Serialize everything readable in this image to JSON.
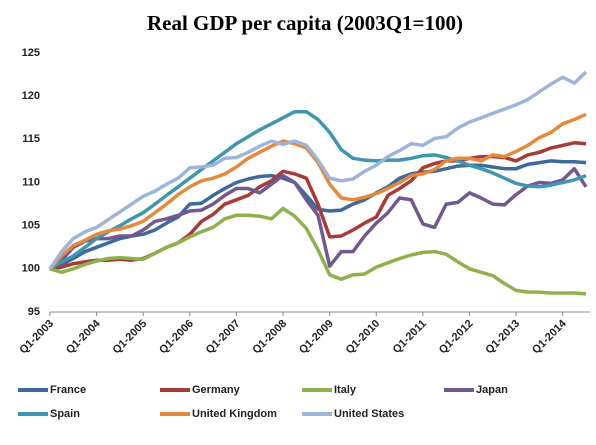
{
  "chart_data": {
    "type": "line",
    "title": "Real GDP per capita (2003Q1=100)",
    "categories": [
      "Q1-2003",
      null,
      null,
      null,
      "Q1-2004",
      null,
      null,
      null,
      "Q1-2005",
      null,
      null,
      null,
      "Q1-2006",
      null,
      null,
      null,
      "Q1-2007",
      null,
      null,
      null,
      "Q1-2008",
      null,
      null,
      null,
      "Q1-2009",
      null,
      null,
      null,
      "Q1-2010",
      null,
      null,
      null,
      "Q1-2011",
      null,
      null,
      null,
      "Q1-2012",
      null,
      null,
      null,
      "Q1-2013",
      null,
      null,
      null,
      "Q1-2014",
      null,
      null
    ],
    "ylim": [
      95,
      125
    ],
    "yticks": [
      95,
      100,
      105,
      110,
      115,
      120,
      125
    ],
    "grid": false,
    "series": [
      {
        "name": "France",
        "color": "#3b6a9b",
        "values": [
          100,
          100.5,
          101.2,
          102,
          102.5,
          103,
          103.5,
          103.8,
          104,
          104.5,
          105.3,
          106,
          107.5,
          107.6,
          108.5,
          109.3,
          110,
          110.4,
          110.7,
          110.8,
          110.5,
          110,
          108.5,
          106.9,
          106.7,
          106.8,
          107.5,
          108,
          108.8,
          109.5,
          110.5,
          111,
          111.2,
          111.3,
          111.6,
          111.9,
          112,
          112,
          111.8,
          111.6,
          111.6,
          112.1,
          112.3,
          112.5,
          112.4,
          112.4,
          112.3
        ]
      },
      {
        "name": "Germany",
        "color": "#a83b37",
        "values": [
          100,
          100.2,
          100.6,
          100.8,
          101,
          101,
          101.1,
          101,
          101.2,
          101.8,
          102.5,
          103,
          104,
          105.5,
          106.3,
          107.5,
          108,
          108.5,
          109.5,
          110.2,
          111.3,
          111,
          110.5,
          107.5,
          103.7,
          103.8,
          104.5,
          105.3,
          106,
          108.5,
          109.3,
          110.2,
          111.7,
          112.2,
          112.5,
          112.5,
          112.8,
          113,
          113,
          112.9,
          112.5,
          113.2,
          113.5,
          114,
          114.3,
          114.6,
          114.5
        ]
      },
      {
        "name": "Italy",
        "color": "#8db24b",
        "values": [
          100,
          99.6,
          100,
          100.5,
          100.9,
          101.2,
          101.3,
          101.2,
          101.1,
          101.8,
          102.5,
          103,
          103.7,
          104.3,
          104.8,
          105.8,
          106.2,
          106.2,
          106.1,
          105.8,
          107,
          106.1,
          104.7,
          102.2,
          99.3,
          98.8,
          99.3,
          99.4,
          100.2,
          100.7,
          101.2,
          101.6,
          101.9,
          102,
          101.7,
          100.8,
          100,
          99.6,
          99.2,
          98.3,
          97.5,
          97.3,
          97.3,
          97.2,
          97.2,
          97.2,
          97.1
        ]
      },
      {
        "name": "Japan",
        "color": "#71588f",
        "values": [
          100,
          101,
          102.5,
          103.2,
          103.5,
          103.5,
          103.8,
          103.8,
          104.5,
          105.5,
          105.8,
          106.2,
          106.7,
          106.8,
          107.5,
          108.5,
          109.3,
          109.3,
          108.8,
          109.8,
          110.8,
          110,
          108,
          106.2,
          100.3,
          102,
          102,
          103.8,
          105.3,
          106.5,
          108.2,
          108,
          105.2,
          104.8,
          107.5,
          107.7,
          108.8,
          108.2,
          107.5,
          107.4,
          108.6,
          109.6,
          110,
          109.9,
          110.3,
          111.6,
          109.5
        ]
      },
      {
        "name": "Spain",
        "color": "#3e97ae",
        "values": [
          100,
          100.8,
          101.5,
          102.5,
          103.5,
          104.3,
          105,
          105.8,
          106.5,
          107.5,
          108.5,
          109.5,
          110.5,
          111.5,
          112.5,
          113.5,
          114.5,
          115.3,
          116.1,
          116.8,
          117.5,
          118.2,
          118.2,
          117.3,
          115.8,
          113.8,
          112.8,
          112.6,
          112.5,
          112.6,
          112.6,
          112.8,
          113.1,
          113.2,
          112.9,
          112.5,
          112,
          111.6,
          111.1,
          110.5,
          109.9,
          109.6,
          109.5,
          109.7,
          110,
          110.3,
          110.8
        ]
      },
      {
        "name": "United Kingdom",
        "color": "#e6893c",
        "values": [
          100,
          101.5,
          102.7,
          103.3,
          104,
          104.4,
          104.6,
          105,
          105.5,
          106.5,
          107.5,
          108.6,
          109.5,
          110.2,
          110.5,
          111,
          111.8,
          112.8,
          113.5,
          114.2,
          114.8,
          114.5,
          114,
          112.3,
          109.8,
          108.2,
          108,
          108.3,
          108.7,
          109.3,
          110,
          110.8,
          111,
          111.5,
          112.5,
          112.8,
          112.8,
          112.5,
          113.2,
          113,
          113.6,
          114.3,
          115.2,
          115.8,
          116.8,
          117.3,
          117.9
        ]
      },
      {
        "name": "United States",
        "color": "#9db5d9",
        "values": [
          100,
          102,
          103.5,
          104.3,
          104.8,
          105.7,
          106.6,
          107.5,
          108.4,
          109,
          109.8,
          110.5,
          111.7,
          111.8,
          112,
          112.8,
          112.9,
          113.5,
          114.2,
          114.8,
          114.4,
          114.8,
          114.3,
          112.6,
          110.5,
          110.2,
          110.4,
          111.3,
          112,
          113,
          113.7,
          114.5,
          114.3,
          115.1,
          115.3,
          116.3,
          117,
          117.5,
          118,
          118.5,
          119,
          119.6,
          120.5,
          121.4,
          122.2,
          121.5,
          122.8
        ]
      }
    ]
  }
}
